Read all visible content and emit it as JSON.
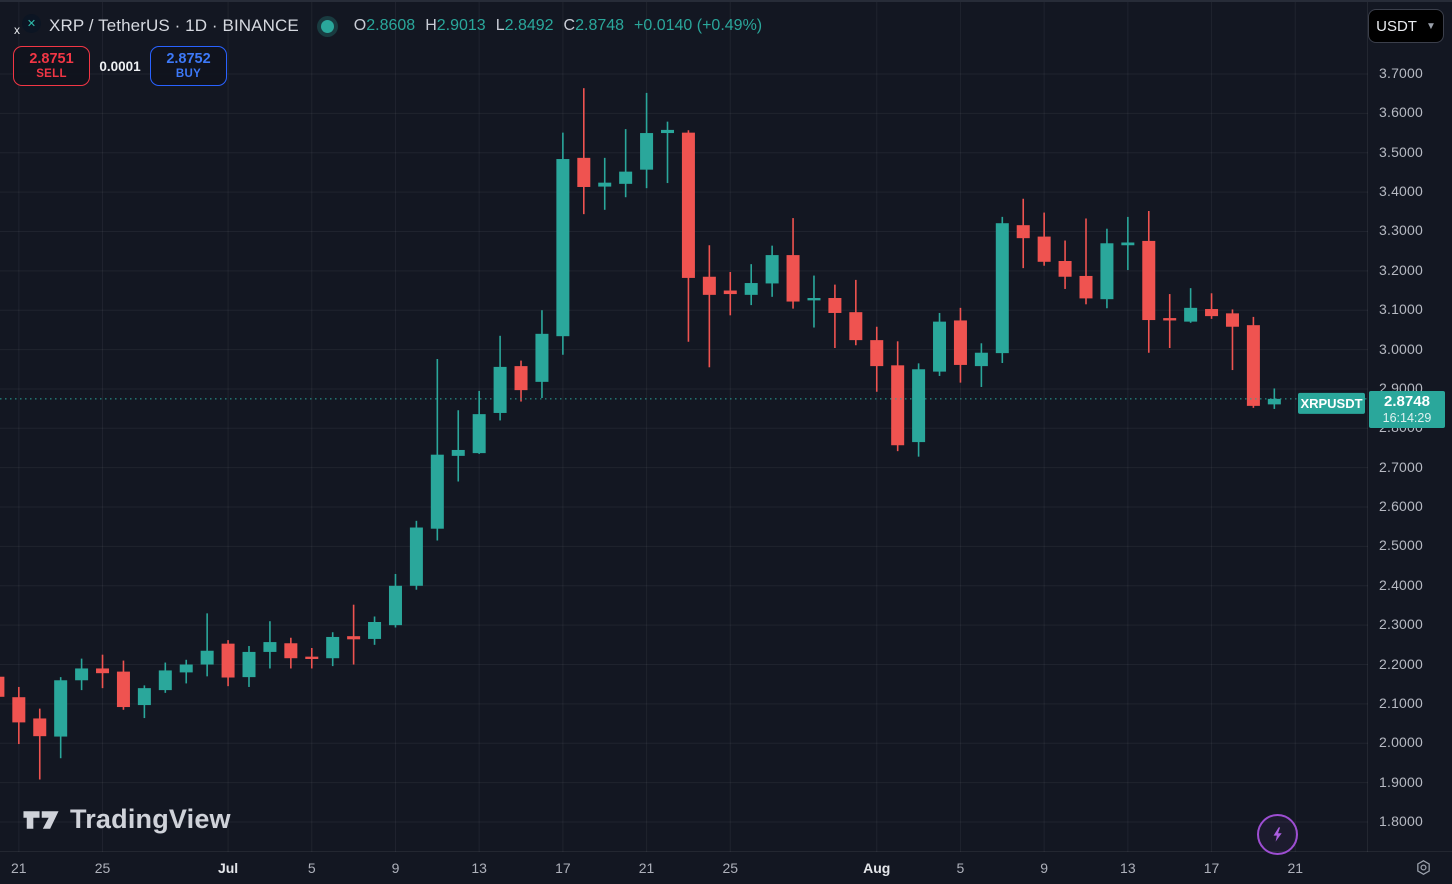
{
  "header": {
    "logo_letter": "x",
    "symbol_title": "XRP / TetherUS · 1D · BINANCE",
    "ohlc": {
      "o_label": "O",
      "o": "2.8608",
      "h_label": "H",
      "h": "2.9013",
      "l_label": "L",
      "l": "2.8492",
      "c_label": "C",
      "c": "2.8748",
      "change": "+0.0140 (+0.49%)"
    }
  },
  "trade_panel": {
    "sell_price": "2.8751",
    "sell_label": "SELL",
    "spread": "0.0001",
    "buy_price": "2.8752",
    "buy_label": "BUY"
  },
  "currency_button": {
    "label": "USDT"
  },
  "price_line": {
    "tag": "XRPUSDT",
    "price": "2.8748",
    "countdown": "16:14:29"
  },
  "watermark": {
    "text": "TradingView"
  },
  "icons": {
    "status_dot": "market-open",
    "boost": "lightning",
    "timezone_settings": "gear"
  },
  "colors": {
    "background": "#131722",
    "up": "#2aa79b",
    "down": "#ef5350",
    "sell_red": "#f23645",
    "buy_blue": "#2962ff",
    "boost_purple": "#9d4ed2",
    "label_bg": "#2aa79b"
  },
  "chart_data": {
    "type": "candlestick",
    "symbol": "XRPUSDT",
    "exchange": "BINANCE",
    "interval": "1D",
    "title": "XRP / TetherUS · 1D · BINANCE",
    "grid": true,
    "ylim": [
      1.78,
      3.72
    ],
    "current_price": 2.8748,
    "up_color": "#2aa79b",
    "down_color": "#ef5350",
    "y_ticks": [
      "3.7000",
      "3.6000",
      "3.5000",
      "3.4000",
      "3.3000",
      "3.2000",
      "3.1000",
      "3.0000",
      "2.9000",
      "2.8000",
      "2.7000",
      "2.6000",
      "2.5000",
      "2.4000",
      "2.3000",
      "2.2000",
      "2.1000",
      "2.0000",
      "1.9000",
      "1.8000"
    ],
    "x_ticks": [
      {
        "label": "21",
        "day_offset": 0,
        "bold": false
      },
      {
        "label": "25",
        "day_offset": 4,
        "bold": false
      },
      {
        "label": "Jul",
        "day_offset": 10,
        "bold": true
      },
      {
        "label": "5",
        "day_offset": 14,
        "bold": false
      },
      {
        "label": "9",
        "day_offset": 18,
        "bold": false
      },
      {
        "label": "13",
        "day_offset": 22,
        "bold": false
      },
      {
        "label": "17",
        "day_offset": 26,
        "bold": false
      },
      {
        "label": "21",
        "day_offset": 30,
        "bold": false
      },
      {
        "label": "25",
        "day_offset": 34,
        "bold": false
      },
      {
        "label": "Aug",
        "day_offset": 41,
        "bold": true
      },
      {
        "label": "5",
        "day_offset": 45,
        "bold": false
      },
      {
        "label": "9",
        "day_offset": 49,
        "bold": false
      },
      {
        "label": "13",
        "day_offset": 53,
        "bold": false
      },
      {
        "label": "17",
        "day_offset": 57,
        "bold": false
      },
      {
        "label": "21",
        "day_offset": 61,
        "bold": false
      }
    ],
    "candles": [
      {
        "d": "Jun 20",
        "o": 2.169,
        "h": 2.178,
        "l": 2.105,
        "c": 2.118
      },
      {
        "d": "Jun 21",
        "o": 2.117,
        "h": 2.143,
        "l": 1.998,
        "c": 2.053
      },
      {
        "d": "Jun 22",
        "o": 2.063,
        "h": 2.088,
        "l": 1.908,
        "c": 2.018
      },
      {
        "d": "Jun 23",
        "o": 2.017,
        "h": 2.168,
        "l": 1.962,
        "c": 2.16
      },
      {
        "d": "Jun 24",
        "o": 2.16,
        "h": 2.215,
        "l": 2.135,
        "c": 2.19
      },
      {
        "d": "Jun 25",
        "o": 2.19,
        "h": 2.225,
        "l": 2.14,
        "c": 2.178
      },
      {
        "d": "Jun 26",
        "o": 2.182,
        "h": 2.21,
        "l": 2.085,
        "c": 2.092
      },
      {
        "d": "Jun 27",
        "o": 2.097,
        "h": 2.147,
        "l": 2.064,
        "c": 2.14
      },
      {
        "d": "Jun 28",
        "o": 2.135,
        "h": 2.205,
        "l": 2.128,
        "c": 2.185
      },
      {
        "d": "Jun 29",
        "o": 2.18,
        "h": 2.212,
        "l": 2.152,
        "c": 2.2
      },
      {
        "d": "Jun 30",
        "o": 2.2,
        "h": 2.33,
        "l": 2.17,
        "c": 2.235
      },
      {
        "d": "Jul 1",
        "o": 2.253,
        "h": 2.262,
        "l": 2.145,
        "c": 2.167
      },
      {
        "d": "Jul 2",
        "o": 2.168,
        "h": 2.247,
        "l": 2.143,
        "c": 2.232
      },
      {
        "d": "Jul 3",
        "o": 2.232,
        "h": 2.31,
        "l": 2.19,
        "c": 2.257
      },
      {
        "d": "Jul 4",
        "o": 2.254,
        "h": 2.268,
        "l": 2.19,
        "c": 2.216
      },
      {
        "d": "Jul 5",
        "o": 2.22,
        "h": 2.242,
        "l": 2.19,
        "c": 2.214
      },
      {
        "d": "Jul 6",
        "o": 2.216,
        "h": 2.282,
        "l": 2.196,
        "c": 2.27
      },
      {
        "d": "Jul 7",
        "o": 2.272,
        "h": 2.352,
        "l": 2.2,
        "c": 2.264
      },
      {
        "d": "Jul 8",
        "o": 2.265,
        "h": 2.322,
        "l": 2.25,
        "c": 2.308
      },
      {
        "d": "Jul 9",
        "o": 2.3,
        "h": 2.43,
        "l": 2.294,
        "c": 2.4
      },
      {
        "d": "Jul 10",
        "o": 2.4,
        "h": 2.565,
        "l": 2.39,
        "c": 2.548
      },
      {
        "d": "Jul 11",
        "o": 2.545,
        "h": 2.976,
        "l": 2.515,
        "c": 2.733
      },
      {
        "d": "Jul 12",
        "o": 2.73,
        "h": 2.846,
        "l": 2.665,
        "c": 2.745
      },
      {
        "d": "Jul 13",
        "o": 2.737,
        "h": 2.895,
        "l": 2.735,
        "c": 2.836
      },
      {
        "d": "Jul 14",
        "o": 2.839,
        "h": 3.035,
        "l": 2.82,
        "c": 2.956
      },
      {
        "d": "Jul 15",
        "o": 2.958,
        "h": 2.972,
        "l": 2.868,
        "c": 2.897
      },
      {
        "d": "Jul 16",
        "o": 2.918,
        "h": 3.1,
        "l": 2.877,
        "c": 3.04
      },
      {
        "d": "Jul 17",
        "o": 3.034,
        "h": 3.551,
        "l": 2.987,
        "c": 3.484
      },
      {
        "d": "Jul 18",
        "o": 3.487,
        "h": 3.664,
        "l": 3.344,
        "c": 3.413
      },
      {
        "d": "Jul 19",
        "o": 3.414,
        "h": 3.487,
        "l": 3.355,
        "c": 3.424
      },
      {
        "d": "Jul 20",
        "o": 3.421,
        "h": 3.56,
        "l": 3.387,
        "c": 3.452
      },
      {
        "d": "Jul 21",
        "o": 3.457,
        "h": 3.652,
        "l": 3.41,
        "c": 3.55
      },
      {
        "d": "Jul 22",
        "o": 3.55,
        "h": 3.579,
        "l": 3.423,
        "c": 3.558
      },
      {
        "d": "Jul 23",
        "o": 3.551,
        "h": 3.557,
        "l": 3.02,
        "c": 3.182
      },
      {
        "d": "Jul 24",
        "o": 3.185,
        "h": 3.265,
        "l": 2.955,
        "c": 3.139
      },
      {
        "d": "Jul 25",
        "o": 3.15,
        "h": 3.197,
        "l": 3.087,
        "c": 3.141
      },
      {
        "d": "Jul 26",
        "o": 3.139,
        "h": 3.217,
        "l": 3.113,
        "c": 3.169
      },
      {
        "d": "Jul 27",
        "o": 3.168,
        "h": 3.264,
        "l": 3.134,
        "c": 3.24
      },
      {
        "d": "Jul 28",
        "o": 3.24,
        "h": 3.334,
        "l": 3.104,
        "c": 3.122
      },
      {
        "d": "Jul 29",
        "o": 3.125,
        "h": 3.188,
        "l": 3.056,
        "c": 3.131
      },
      {
        "d": "Jul 30",
        "o": 3.131,
        "h": 3.165,
        "l": 3.004,
        "c": 3.093
      },
      {
        "d": "Jul 31",
        "o": 3.095,
        "h": 3.177,
        "l": 3.011,
        "c": 3.024
      },
      {
        "d": "Aug 1",
        "o": 3.024,
        "h": 3.058,
        "l": 2.893,
        "c": 2.958
      },
      {
        "d": "Aug 2",
        "o": 2.96,
        "h": 3.021,
        "l": 2.742,
        "c": 2.757
      },
      {
        "d": "Aug 3",
        "o": 2.765,
        "h": 2.965,
        "l": 2.728,
        "c": 2.95
      },
      {
        "d": "Aug 4",
        "o": 2.944,
        "h": 3.093,
        "l": 2.933,
        "c": 3.071
      },
      {
        "d": "Aug 5",
        "o": 3.074,
        "h": 3.106,
        "l": 2.916,
        "c": 2.961
      },
      {
        "d": "Aug 6",
        "o": 2.958,
        "h": 3.016,
        "l": 2.905,
        "c": 2.992
      },
      {
        "d": "Aug 7",
        "o": 2.991,
        "h": 3.337,
        "l": 2.966,
        "c": 3.321
      },
      {
        "d": "Aug 8",
        "o": 3.316,
        "h": 3.383,
        "l": 3.207,
        "c": 3.283
      },
      {
        "d": "Aug 9",
        "o": 3.287,
        "h": 3.348,
        "l": 3.213,
        "c": 3.223
      },
      {
        "d": "Aug 10",
        "o": 3.225,
        "h": 3.277,
        "l": 3.154,
        "c": 3.185
      },
      {
        "d": "Aug 11",
        "o": 3.187,
        "h": 3.333,
        "l": 3.115,
        "c": 3.13
      },
      {
        "d": "Aug 12",
        "o": 3.128,
        "h": 3.307,
        "l": 3.105,
        "c": 3.27
      },
      {
        "d": "Aug 13",
        "o": 3.265,
        "h": 3.337,
        "l": 3.202,
        "c": 3.272
      },
      {
        "d": "Aug 14",
        "o": 3.276,
        "h": 3.352,
        "l": 2.992,
        "c": 3.075
      },
      {
        "d": "Aug 15",
        "o": 3.08,
        "h": 3.141,
        "l": 3.004,
        "c": 3.074
      },
      {
        "d": "Aug 16",
        "o": 3.071,
        "h": 3.156,
        "l": 3.068,
        "c": 3.106
      },
      {
        "d": "Aug 17",
        "o": 3.103,
        "h": 3.143,
        "l": 3.078,
        "c": 3.085
      },
      {
        "d": "Aug 18",
        "o": 3.092,
        "h": 3.102,
        "l": 2.948,
        "c": 3.058
      },
      {
        "d": "Aug 19",
        "o": 3.062,
        "h": 3.083,
        "l": 2.852,
        "c": 2.857
      },
      {
        "d": "Aug 20",
        "o": 2.8608,
        "h": 2.9013,
        "l": 2.8492,
        "c": 2.8748
      }
    ]
  }
}
